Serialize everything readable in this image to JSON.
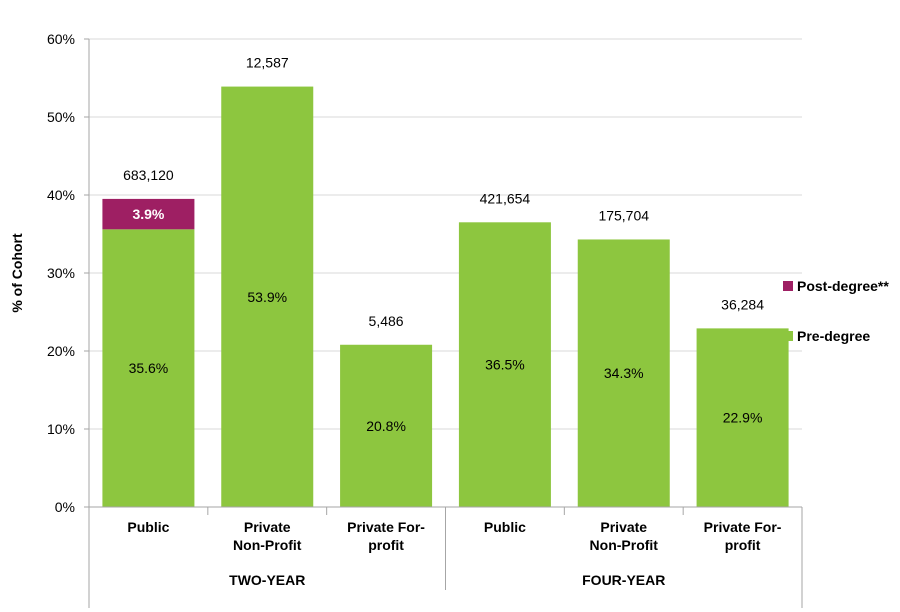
{
  "chart_data": {
    "type": "bar",
    "stacked": true,
    "ylabel": "% of Cohort",
    "ylim": [
      0,
      60
    ],
    "yticks": [
      0,
      10,
      20,
      30,
      40,
      50,
      60
    ],
    "ytick_labels": [
      "0%",
      "10%",
      "20%",
      "30%",
      "40%",
      "50%",
      "60%"
    ],
    "grid": true,
    "legend_position": "right",
    "groups": [
      {
        "label": "TWO-YEAR",
        "categories": [
          {
            "label": [
              "Public"
            ],
            "total_label": "683,120"
          },
          {
            "label": [
              "Private",
              "Non-Profit"
            ],
            "total_label": "12,587"
          },
          {
            "label": [
              "Private For-",
              "profit"
            ],
            "total_label": "5,486"
          }
        ]
      },
      {
        "label": "FOUR-YEAR",
        "categories": [
          {
            "label": [
              "Public"
            ],
            "total_label": "421,654"
          },
          {
            "label": [
              "Private",
              "Non-Profit"
            ],
            "total_label": "175,704"
          },
          {
            "label": [
              "Private For-",
              "profit"
            ],
            "total_label": "36,284"
          }
        ]
      }
    ],
    "series": [
      {
        "name": "Pre-degree",
        "color": "#8dc63f",
        "values": [
          35.6,
          53.9,
          20.8,
          36.5,
          34.3,
          22.9
        ],
        "labels": [
          "35.6%",
          "53.9%",
          "20.8%",
          "36.5%",
          "34.3%",
          "22.9%"
        ]
      },
      {
        "name": "Post-degree**",
        "color": "#9e1f63",
        "values": [
          3.9,
          null,
          null,
          null,
          null,
          null
        ],
        "labels": [
          "3.9%",
          null,
          null,
          null,
          null,
          null
        ]
      }
    ],
    "legend_order": [
      "Post-degree**",
      "Pre-degree"
    ]
  }
}
